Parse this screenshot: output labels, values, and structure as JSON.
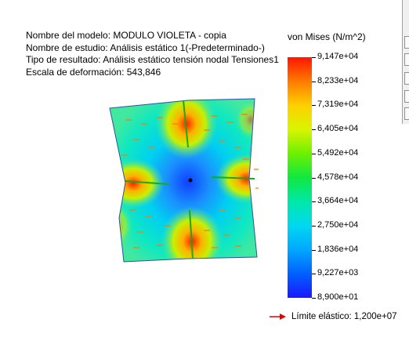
{
  "header": {
    "model_name": "Nombre del modelo: MODULO VIOLETA  - copia",
    "study_name": "Nombre de estudio: Análisis estático 1(-Predeterminado-)",
    "result_type": "Tipo de resultado: Análisis estático tensión nodal Tensiones1",
    "deformation_scale": "Escala de deformación: 543,846"
  },
  "legend": {
    "title": "von Mises (N/m^2)",
    "labels": [
      "9,147e+04",
      "8,233e+04",
      "7,319e+04",
      "6,405e+04",
      "5,492e+04",
      "4,578e+04",
      "3,664e+04",
      "2,750e+04",
      "1,836e+04",
      "9,227e+03",
      "8,900e+01"
    ],
    "max_color": "#ff1500",
    "min_color": "#1a18ff"
  },
  "yield": {
    "text": "Límite elástico: 1,200e+07",
    "arrow_color": "#e60000"
  },
  "model": {
    "center_color": "#1a6cff",
    "mid_color": "#00d8e8",
    "hot_color": "#ff3000",
    "arrow_color": "#ff7a00",
    "fixture_color": "#22cc22"
  }
}
